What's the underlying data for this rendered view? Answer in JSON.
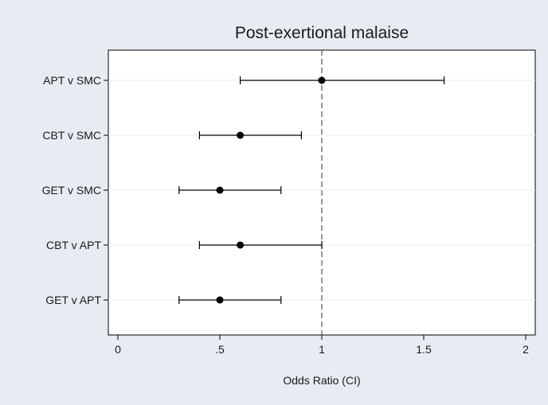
{
  "chart_data": {
    "type": "scatter",
    "subtype": "forest-plot",
    "title": "Post-exertional malaise",
    "xlabel": "Odds Ratio (CI)",
    "ylabel": "",
    "xlim": [
      0,
      2
    ],
    "xticks": [
      0,
      0.5,
      1,
      1.5,
      2
    ],
    "xtick_labels": [
      "0",
      ".5",
      "1",
      "1.5",
      "2"
    ],
    "reference_line": 1,
    "grid": true,
    "legend": "none",
    "categories": [
      "APT v SMC",
      "CBT v SMC",
      "GET v SMC",
      "CBT v APT",
      "GET v APT"
    ],
    "estimates": [
      1.0,
      0.6,
      0.5,
      0.6,
      0.5
    ],
    "ci_lower": [
      0.6,
      0.4,
      0.3,
      0.4,
      0.3
    ],
    "ci_upper": [
      1.6,
      0.9,
      0.8,
      1.0,
      0.8
    ]
  },
  "colors": {
    "background": "#e7ecf2",
    "plot_background": "#ffffff",
    "grid": "#e9edf1",
    "marks": "#000000",
    "reference_line": "#555555"
  }
}
